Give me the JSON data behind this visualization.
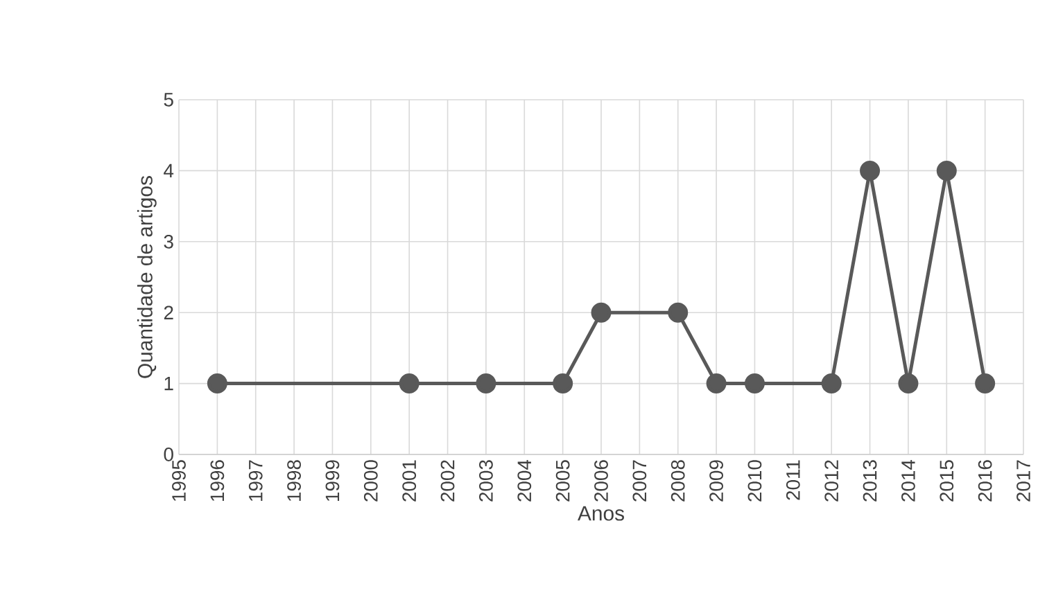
{
  "chart_data": {
    "type": "line",
    "xlabel": "Anos",
    "ylabel": "Quantidade de artigos",
    "x": [
      1996,
      2001,
      2003,
      2005,
      2006,
      2008,
      2009,
      2010,
      2012,
      2013,
      2014,
      2015,
      2016
    ],
    "values": [
      1,
      1,
      1,
      1,
      2,
      2,
      1,
      1,
      1,
      4,
      1,
      4,
      1
    ],
    "color": "#595959",
    "marker": "circle",
    "line_style": "solid",
    "grid": true,
    "xlim": [
      1995,
      2017
    ],
    "xticks": [
      1995,
      1996,
      1997,
      1998,
      1999,
      2000,
      2001,
      2002,
      2003,
      2004,
      2005,
      2006,
      2007,
      2008,
      2009,
      2010,
      2011,
      2012,
      2013,
      2014,
      2015,
      2016,
      2017
    ],
    "ylim": [
      0,
      5
    ],
    "yticks": [
      0,
      1,
      2,
      3,
      4,
      5
    ]
  }
}
